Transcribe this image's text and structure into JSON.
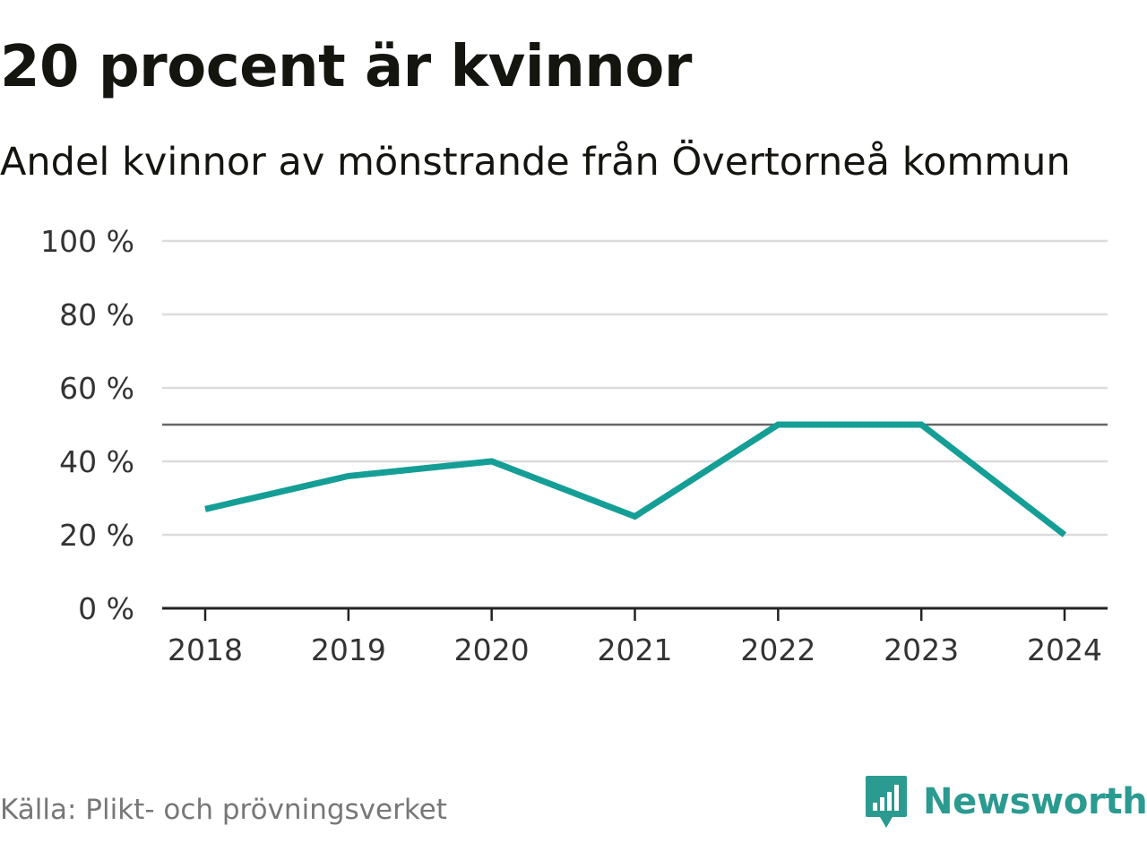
{
  "header": {
    "title": "20 procent är kvinnor",
    "subtitle": "Andel kvinnor av mönstrande från Övertorneå kommun"
  },
  "chart_data": {
    "type": "line",
    "categories": [
      "2018",
      "2019",
      "2020",
      "2021",
      "2022",
      "2023",
      "2024"
    ],
    "series": [
      {
        "values": [
          27,
          36,
          40,
          25,
          50,
          50,
          20
        ]
      }
    ],
    "reference_line": 50,
    "ylim": [
      0,
      100
    ],
    "yticks": [
      0,
      20,
      40,
      60,
      80,
      100
    ],
    "ytick_labels": [
      "0 %",
      "20 %",
      "40 %",
      "60 %",
      "80 %",
      "100 %"
    ],
    "grid": true,
    "line_color": "#159e96",
    "xlabel": "",
    "ylabel": ""
  },
  "footer": {
    "source": "Källa: Plikt- och prövningsverket",
    "brand": "Newsworthy",
    "brand_color": "#2b9a90",
    "logo_icon": "bar-chart-speech-bubble-icon"
  }
}
